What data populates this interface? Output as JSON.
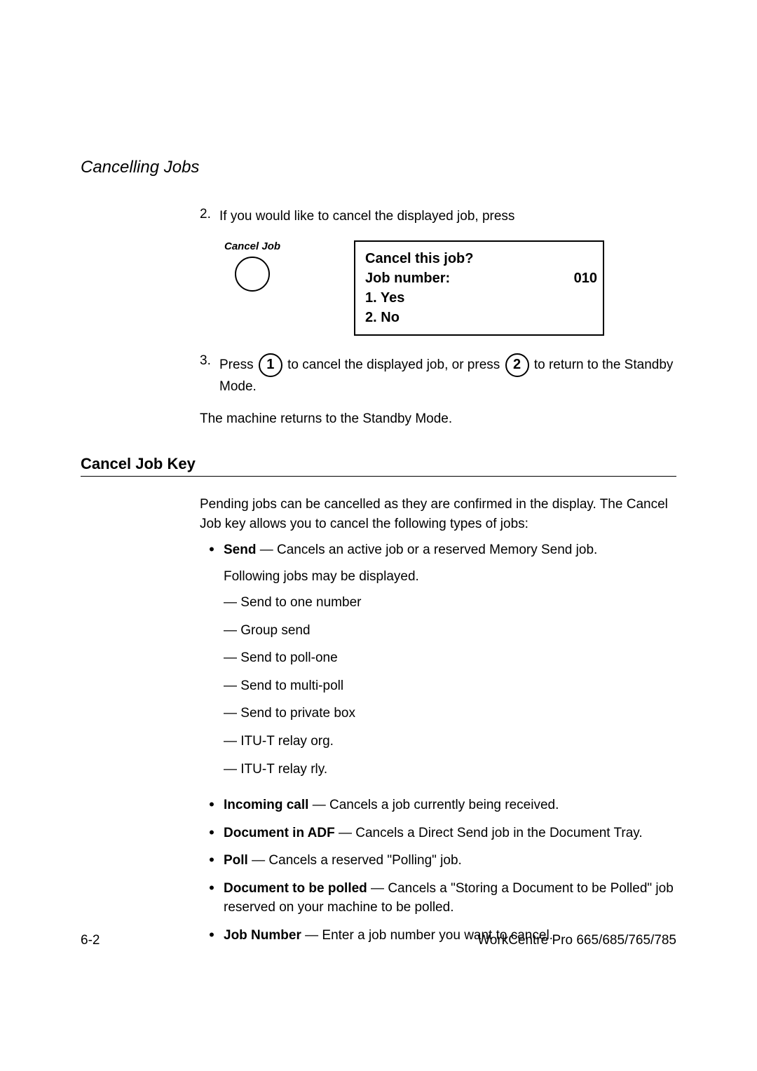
{
  "sectionTitle": "Cancelling Jobs",
  "step2": {
    "num": "2.",
    "text": "If you would like to cancel the displayed job, press"
  },
  "cancelJobLabel": "Cancel Job",
  "lcd": {
    "line1": "Cancel this job?",
    "line2": "Job number:",
    "line2right": "010",
    "line3": "1. Yes",
    "line4": "2. No"
  },
  "step3": {
    "num": "3.",
    "pre": "Press",
    "key1": "1",
    "mid": "to cancel the displayed job, or press",
    "key2": "2",
    "post": "to return to the Standby Mode."
  },
  "standbyLine": "The machine returns to the Standby Mode.",
  "subsectionTitle": "Cancel Job Key",
  "intro": "Pending jobs can be cancelled as they are confirmed in the display. The Cancel Job key allows you to cancel the following types of jobs:",
  "bullets": {
    "send": {
      "label": "Send",
      "desc": " — Cancels an active job or a reserved Memory Send job.",
      "sub": "Following jobs may be displayed.",
      "dashes": [
        "— Send to one number",
        "— Group send",
        "— Send to poll-one",
        "— Send to multi-poll",
        "— Send to private box",
        "— ITU-T relay org.",
        "— ITU-T relay rly."
      ]
    },
    "incoming": {
      "label": "Incoming call",
      "desc": " — Cancels a job currently being received."
    },
    "adf": {
      "label": "Document in ADF",
      "desc": " — Cancels a Direct Send job in the Document Tray."
    },
    "poll": {
      "label": "Poll",
      "desc": " — Cancels a reserved \"Polling\" job."
    },
    "polled": {
      "label": "Document to be polled",
      "desc": " — Cancels a \"Storing a Document to be Polled\" job reserved on your machine to be polled."
    },
    "jobnum": {
      "label": "Job Number",
      "desc": " — Enter a job number you want to cancel."
    }
  },
  "footer": {
    "left": "6-2",
    "right": "WorkCentre Pro 665/685/765/785"
  }
}
